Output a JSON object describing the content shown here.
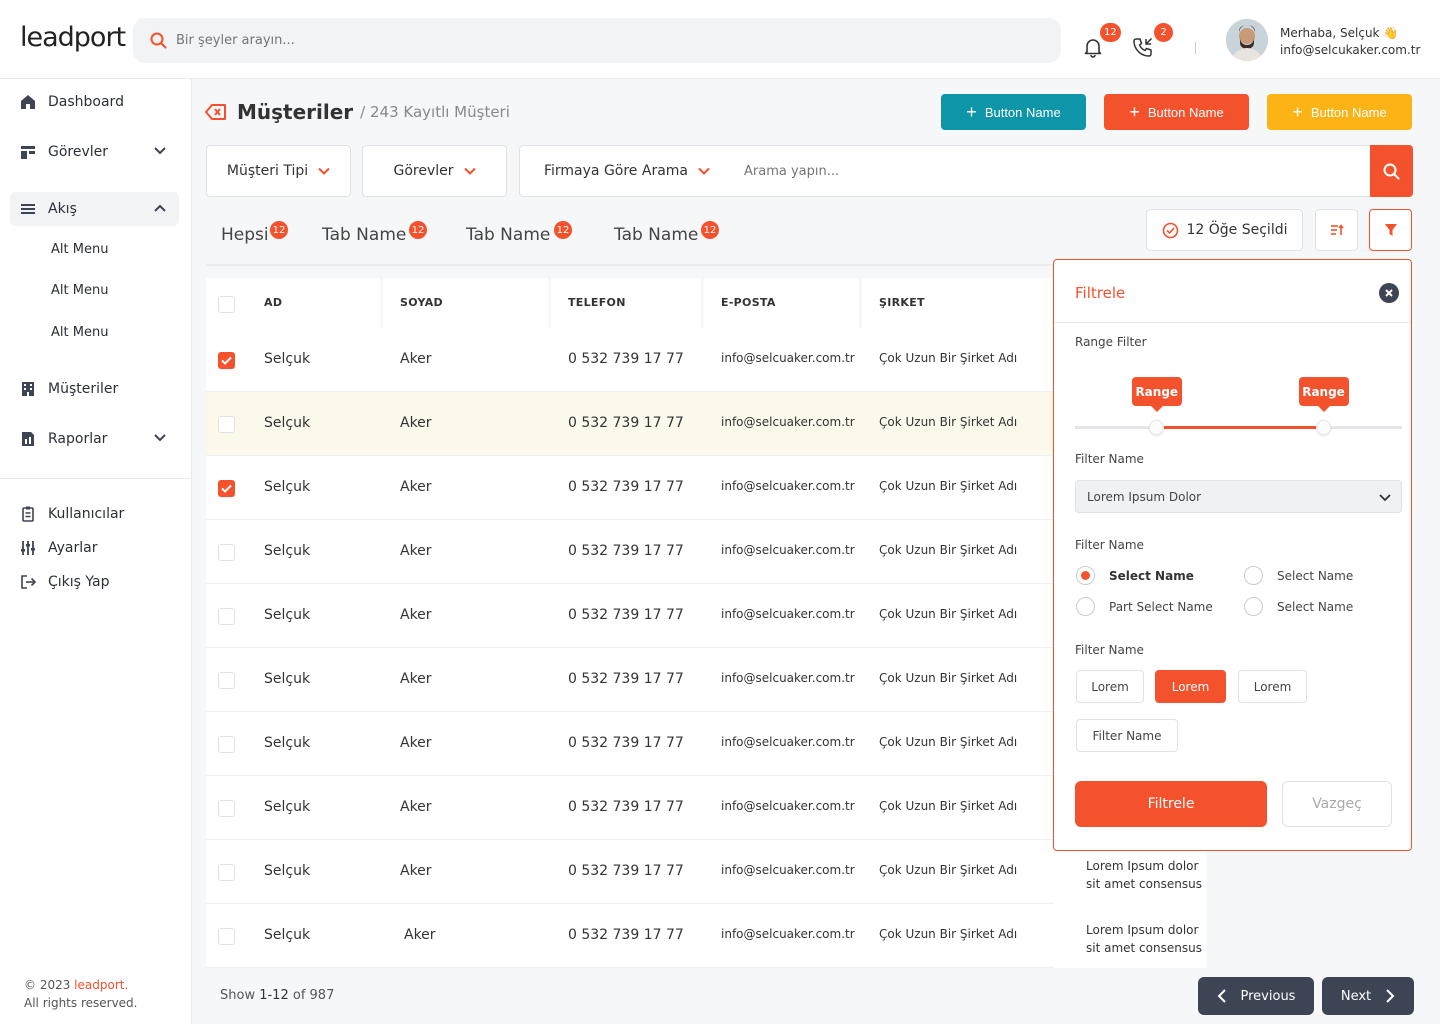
{
  "header": {
    "logo": "leadport",
    "search_placeholder": "Bir şeyler arayın...",
    "notifications_count": "12",
    "calls_count": "2",
    "greeting": "Merhaba, Selçuk 👋",
    "email": "info@selcukaker.com.tr"
  },
  "sidebar": {
    "items": [
      {
        "label": "Dashboard",
        "icon": "home-icon"
      },
      {
        "label": "Görevler",
        "icon": "tasks-icon"
      },
      {
        "label": "Akış",
        "icon": "list-icon"
      },
      {
        "label": "Müşteriler",
        "icon": "building-icon"
      },
      {
        "label": "Raporlar",
        "icon": "report-icon"
      }
    ],
    "sub_items": [
      "Alt Menu",
      "Alt Menu",
      "Alt Menu"
    ],
    "bottom_items": [
      {
        "label": "Kullanıcılar",
        "icon": "users-icon"
      },
      {
        "label": "Ayarlar",
        "icon": "sliders-icon"
      },
      {
        "label": "Çıkış Yap",
        "icon": "logout-icon"
      }
    ],
    "copyright_prefix": "© 2023 ",
    "copyright_brand": "leadport.",
    "rights": "All rights reserved."
  },
  "page": {
    "title": "Müşteriler",
    "subtitle": "/ 243 Kayıtlı Müşteri",
    "buttons": [
      {
        "label": "Button Name",
        "color": "#0e95a8"
      },
      {
        "label": "Button Name",
        "color": "#f4522d"
      },
      {
        "label": "Button Name",
        "color": "#fbb315"
      }
    ]
  },
  "filters": {
    "customer_type": "Müşteri Tipi",
    "tasks": "Görevler",
    "company_search": "Firmaya Göre Arama",
    "search_placeholder": "Arama yapın..."
  },
  "tabs": [
    {
      "label": "Hepsi",
      "count": "12"
    },
    {
      "label": "Tab Name",
      "count": "12"
    },
    {
      "label": "Tab Name",
      "count": "12"
    },
    {
      "label": "Tab Name",
      "count": "12"
    }
  ],
  "selected_label": "12 Öğe Seçildi",
  "table": {
    "headers": [
      "AD",
      "SOYAD",
      "TELEFON",
      "E-POSTA",
      "ŞIRKET"
    ],
    "rows": [
      {
        "checked": true,
        "ad": "Selçuk",
        "soyad": "Aker",
        "telefon": "0 532 739 17 77",
        "eposta": "info@selcuaker.com.tr",
        "sirket": "Çok Uzun Bir Şirket Adı",
        "desc1": "",
        "desc2": ""
      },
      {
        "checked": false,
        "ad": "Selçuk",
        "soyad": "Aker",
        "telefon": "0 532 739 17 77",
        "eposta": "info@selcuaker.com.tr",
        "sirket": "Çok Uzun Bir Şirket Adı",
        "desc1": "",
        "desc2": ""
      },
      {
        "checked": true,
        "ad": "Selçuk",
        "soyad": "Aker",
        "telefon": "0 532 739 17 77",
        "eposta": "info@selcuaker.com.tr",
        "sirket": "Çok Uzun Bir Şirket Adı",
        "desc1": "",
        "desc2": ""
      },
      {
        "checked": false,
        "ad": "Selçuk",
        "soyad": "Aker",
        "telefon": "0 532 739 17 77",
        "eposta": "info@selcuaker.com.tr",
        "sirket": "Çok Uzun Bir Şirket Adı",
        "desc1": "",
        "desc2": ""
      },
      {
        "checked": false,
        "ad": "Selçuk",
        "soyad": "Aker",
        "telefon": "0 532 739 17 77",
        "eposta": "info@selcuaker.com.tr",
        "sirket": "Çok Uzun Bir Şirket Adı",
        "desc1": "",
        "desc2": ""
      },
      {
        "checked": false,
        "ad": "Selçuk",
        "soyad": "Aker",
        "telefon": "0 532 739 17 77",
        "eposta": "info@selcuaker.com.tr",
        "sirket": "Çok Uzun Bir Şirket Adı",
        "desc1": "",
        "desc2": ""
      },
      {
        "checked": false,
        "ad": "Selçuk",
        "soyad": "Aker",
        "telefon": "0 532 739 17 77",
        "eposta": "info@selcuaker.com.tr",
        "sirket": "Çok Uzun Bir Şirket Adı",
        "desc1": "",
        "desc2": ""
      },
      {
        "checked": false,
        "ad": "Selçuk",
        "soyad": "Aker",
        "telefon": "0 532 739 17 77",
        "eposta": "info@selcuaker.com.tr",
        "sirket": "Çok Uzun Bir Şirket Adı",
        "desc1": "",
        "desc2": ""
      },
      {
        "checked": false,
        "ad": "Selçuk",
        "soyad": "Aker",
        "telefon": "0 532 739 17 77",
        "eposta": "info@selcuaker.com.tr",
        "sirket": "Çok Uzun Bir Şirket Adı",
        "desc1": "Lorem Ipsum dolor",
        "desc2": "sit amet consensus"
      },
      {
        "checked": false,
        "ad": "Selçuk",
        "soyad": "Aker",
        "telefon": "0 532 739 17 77",
        "eposta": "info@selcuaker.com.tr",
        "sirket": "Çok Uzun Bir Şirket Adı",
        "desc1": "Lorem Ipsum dolor",
        "desc2": "sit amet consensus"
      }
    ]
  },
  "pagination": {
    "show_prefix": "Show ",
    "range": "1-12",
    "of": " of 987",
    "previous": "Previous",
    "next": "Next"
  },
  "filter_panel": {
    "title": "Filtrele",
    "range_label": "Range Filter",
    "range_tip_left": "Range",
    "range_tip_right": "Range",
    "range_low": 0.25,
    "range_high": 0.76,
    "filter_name_1": "Filter Name",
    "select_value": "Lorem Ipsum Dolor",
    "filter_name_2": "Filter Name",
    "radios": [
      {
        "label": "Select Name",
        "checked": true
      },
      {
        "label": "Select Name",
        "checked": false
      },
      {
        "label": "Part Select Name",
        "checked": false
      },
      {
        "label": "Select Name",
        "checked": false
      }
    ],
    "filter_name_3": "Filter Name",
    "chips": [
      {
        "label": "Lorem",
        "active": false
      },
      {
        "label": "Lorem",
        "active": true
      },
      {
        "label": "Lorem",
        "active": false
      },
      {
        "label": "Filter Name",
        "active": false
      }
    ],
    "apply": "Filtrele",
    "cancel": "Vazgeç"
  }
}
